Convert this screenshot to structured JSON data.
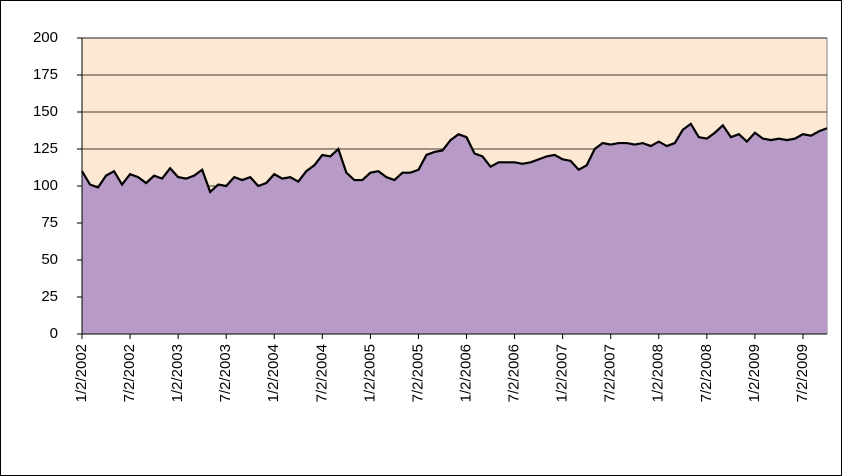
{
  "chart_data": {
    "type": "area",
    "categories": [
      "1/2/2002",
      null,
      null,
      null,
      null,
      null,
      "7/2/2002",
      null,
      null,
      null,
      null,
      null,
      "1/2/2003",
      null,
      null,
      null,
      null,
      null,
      "7/2/2003",
      null,
      null,
      null,
      null,
      null,
      "1/2/2004",
      null,
      null,
      null,
      null,
      null,
      "7/2/2004",
      null,
      null,
      null,
      null,
      null,
      "1/2/2005",
      null,
      null,
      null,
      null,
      null,
      "7/2/2005",
      null,
      null,
      null,
      null,
      null,
      "1/2/2006",
      null,
      null,
      null,
      null,
      null,
      "7/2/2006",
      null,
      null,
      null,
      null,
      null,
      "1/2/2007",
      null,
      null,
      null,
      null,
      null,
      "7/2/2007",
      null,
      null,
      null,
      null,
      null,
      "1/2/2008",
      null,
      null,
      null,
      null,
      null,
      "7/2/2008",
      null,
      null,
      null,
      null,
      null,
      "1/2/2009",
      null,
      null,
      null,
      null,
      null,
      "7/2/2009",
      null,
      null,
      null
    ],
    "values": [
      110,
      101,
      99,
      107,
      110,
      101,
      108,
      106,
      102,
      107,
      105,
      112,
      106,
      105,
      107,
      111,
      96,
      101,
      100,
      106,
      104,
      106,
      100,
      102,
      108,
      105,
      106,
      103,
      110,
      114,
      121,
      120,
      125,
      109,
      104,
      104,
      109,
      110,
      106,
      104,
      109,
      109,
      111,
      121,
      123,
      124,
      131,
      135,
      133,
      122,
      120,
      113,
      116,
      116,
      116,
      115,
      116,
      118,
      120,
      121,
      118,
      117,
      111,
      114,
      125,
      129,
      128,
      129,
      129,
      128,
      129,
      127,
      130,
      127,
      129,
      138,
      142,
      133,
      132,
      136,
      141,
      133,
      135,
      130,
      136,
      132,
      131,
      132,
      131,
      132,
      135,
      134,
      137,
      139
    ],
    "color": "#b79ac5",
    "line_color": "#000000",
    "plot_background": "#fde9d3",
    "ylim": [
      0,
      200
    ],
    "yticks": [
      0,
      25,
      50,
      75,
      100,
      125,
      150,
      175,
      200
    ],
    "grid": true
  }
}
